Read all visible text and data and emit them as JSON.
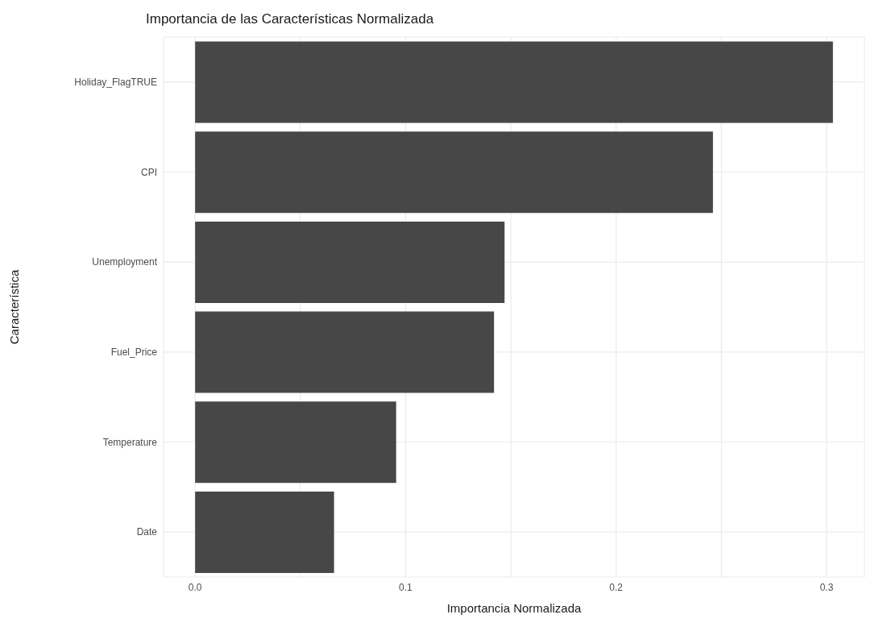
{
  "chart_data": {
    "type": "bar",
    "orientation": "horizontal",
    "title": "Importancia de las Características Normalizada",
    "xlabel": "Importancia Normalizada",
    "ylabel": "Característica",
    "categories": [
      "Holiday_FlagTRUE",
      "CPI",
      "Unemployment",
      "Fuel_Price",
      "Temperature",
      "Date"
    ],
    "values": [
      0.303,
      0.246,
      0.147,
      0.142,
      0.0955,
      0.066
    ],
    "color": "#474747",
    "xlim": [
      -0.015,
      0.318
    ],
    "xticks": [
      {
        "value": 0,
        "label": "0.0"
      },
      {
        "value": 0.05,
        "label": null
      },
      0.1,
      {
        "value": 0.15,
        "label": null
      },
      0.2,
      {
        "value": 0.25,
        "label": null
      },
      0.3
    ],
    "grid": true
  }
}
